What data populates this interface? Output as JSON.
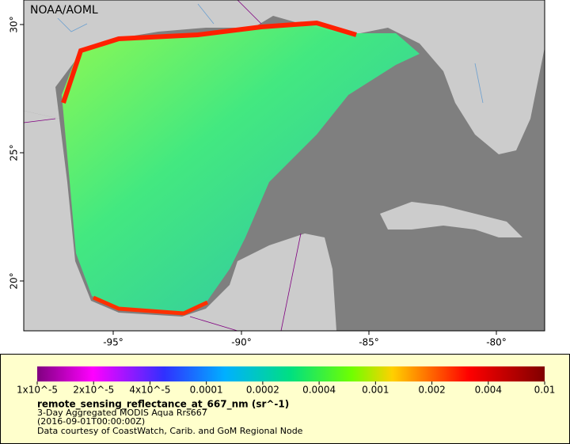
{
  "map": {
    "title": "NOAA/AOML",
    "lat_labels": [
      "30°",
      "25°",
      "20°"
    ],
    "lon_labels": [
      "-95°",
      "-90°",
      "-85°",
      "-80°"
    ]
  },
  "colorbar": {
    "labels": [
      "1x10^-5",
      "2x10^-5",
      "4x10^-5",
      "0.0001",
      "0.0002",
      "0.0004",
      "0.001",
      "0.002",
      "0.004",
      "0.01"
    ]
  },
  "legend": {
    "variable": "remote_sensing_reflectance_at_667_nm (sr^-1)",
    "dataset": "3-Day Aggregated MODIS Aqua Rrs667",
    "time": "(2016-09-01T00:00:00Z)",
    "credit": "Data courtesy of CoastWatch, Carib. and GoM Regional Node"
  }
}
